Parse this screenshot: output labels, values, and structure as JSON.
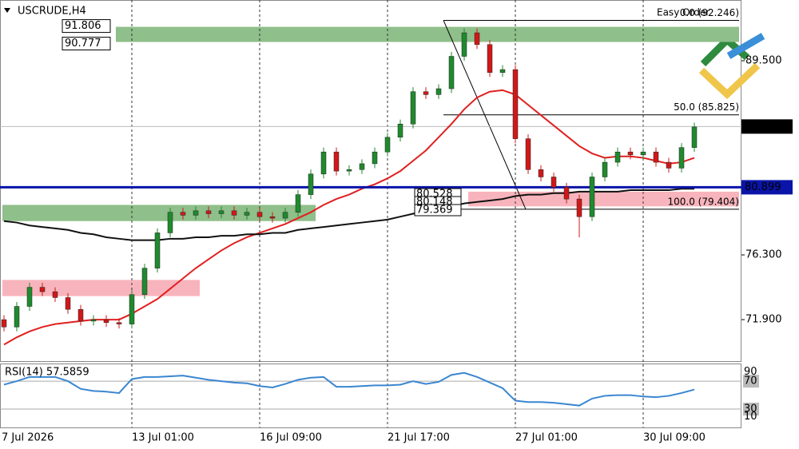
{
  "chart_data": {
    "type": "candlestick",
    "title": "USCRUDE,H4",
    "easy_order": "Easy Order",
    "categories": [
      "7 Jul 2026",
      null,
      null,
      null,
      null,
      null,
      null,
      null,
      null,
      null,
      "13 Jul 01:00",
      null,
      null,
      null,
      null,
      null,
      null,
      null,
      null,
      null,
      "16 Jul 09:00",
      null,
      null,
      null,
      null,
      null,
      null,
      null,
      null,
      null,
      "21 Jul 17:00",
      null,
      null,
      null,
      null,
      null,
      null,
      null,
      null,
      null,
      "27 Jul 01:00",
      null,
      null,
      null,
      null,
      null,
      null,
      null,
      null,
      null,
      "30 Jul 09:00",
      null,
      null,
      null,
      null
    ],
    "open": [
      71.9,
      71.4,
      72.8,
      74.1,
      73.8,
      73.4,
      72.6,
      71.8,
      71.9,
      71.7,
      71.6,
      73.6,
      75.4,
      77.8,
      79.2,
      79.0,
      79.3,
      79.1,
      79.3,
      79.0,
      79.2,
      78.9,
      78.8,
      79.2,
      80.4,
      81.8,
      83.3,
      82.0,
      82.1,
      82.5,
      83.3,
      84.3,
      85.2,
      87.4,
      87.2,
      87.6,
      89.8,
      91.4,
      90.6,
      88.7,
      88.9,
      84.2,
      82.1,
      81.6,
      80.9,
      80.1,
      78.9,
      81.6,
      82.6,
      83.3,
      83.1,
      83.3,
      82.6,
      82.2,
      83.6
    ],
    "high": [
      72.2,
      73.1,
      74.4,
      74.4,
      74.1,
      73.7,
      72.9,
      72.2,
      72.2,
      72.0,
      73.9,
      75.7,
      78.1,
      79.5,
      79.5,
      79.6,
      79.6,
      79.6,
      79.6,
      79.5,
      79.5,
      79.2,
      79.5,
      80.7,
      82.1,
      83.6,
      83.6,
      82.4,
      82.8,
      83.6,
      84.6,
      85.5,
      87.7,
      87.7,
      87.9,
      90.1,
      91.7,
      91.7,
      90.9,
      89.2,
      89.2,
      84.5,
      82.4,
      81.9,
      81.2,
      80.4,
      81.9,
      82.9,
      83.6,
      83.6,
      83.6,
      83.6,
      82.9,
      83.9,
      85.3
    ],
    "low": [
      71.1,
      71.1,
      72.5,
      73.5,
      73.1,
      72.3,
      71.5,
      71.5,
      71.4,
      71.3,
      71.3,
      73.3,
      75.1,
      77.5,
      78.7,
      78.7,
      78.8,
      78.8,
      78.7,
      78.7,
      78.6,
      78.5,
      78.5,
      78.9,
      80.1,
      81.5,
      81.7,
      81.7,
      81.8,
      82.2,
      83.0,
      84.0,
      84.9,
      86.9,
      86.9,
      87.3,
      89.5,
      90.3,
      88.4,
      88.4,
      83.9,
      81.8,
      81.3,
      80.6,
      79.8,
      77.5,
      78.6,
      81.3,
      82.3,
      82.8,
      82.8,
      82.3,
      81.9,
      81.9,
      83.3
    ],
    "close": [
      71.4,
      72.8,
      74.1,
      73.8,
      73.4,
      72.6,
      71.8,
      71.9,
      71.7,
      71.6,
      73.6,
      75.4,
      77.8,
      79.2,
      79.0,
      79.3,
      79.1,
      79.3,
      79.0,
      79.2,
      78.9,
      78.8,
      79.2,
      80.4,
      81.8,
      83.3,
      82.0,
      82.1,
      82.5,
      83.3,
      84.3,
      85.2,
      87.4,
      87.2,
      87.6,
      89.8,
      91.4,
      90.6,
      88.7,
      88.9,
      84.2,
      82.1,
      81.6,
      80.9,
      80.1,
      78.9,
      81.6,
      82.6,
      83.3,
      83.1,
      83.3,
      82.6,
      82.2,
      83.6,
      85.0
    ],
    "up_color": "#1f8a2e",
    "down_color": "#d01818",
    "moving_averages": [
      {
        "color": "#e02020",
        "values": [
          70.2,
          70.7,
          71.1,
          71.4,
          71.6,
          71.7,
          71.8,
          71.9,
          71.9,
          71.9,
          72.3,
          72.8,
          73.3,
          74.0,
          74.7,
          75.4,
          76.0,
          76.6,
          77.1,
          77.5,
          77.8,
          78.1,
          78.4,
          78.8,
          79.2,
          79.7,
          80.1,
          80.4,
          80.8,
          81.1,
          81.5,
          82.0,
          82.7,
          83.4,
          84.3,
          85.2,
          86.2,
          87.0,
          87.4,
          87.5,
          87.2,
          86.5,
          85.8,
          85.1,
          84.4,
          83.7,
          83.2,
          82.9,
          83.0,
          83.0,
          82.9,
          82.7,
          82.5,
          82.6,
          82.9
        ]
      },
      {
        "color": "#111111",
        "values": [
          78.6,
          78.5,
          78.3,
          78.2,
          78.1,
          78.0,
          77.8,
          77.7,
          77.5,
          77.4,
          77.3,
          77.3,
          77.3,
          77.4,
          77.4,
          77.5,
          77.5,
          77.6,
          77.6,
          77.7,
          77.7,
          77.8,
          77.8,
          78.0,
          78.1,
          78.2,
          78.3,
          78.4,
          78.5,
          78.6,
          78.7,
          78.9,
          79.1,
          79.3,
          79.5,
          79.6,
          79.8,
          79.9,
          80.0,
          80.1,
          80.3,
          80.4,
          80.4,
          80.5,
          80.5,
          80.6,
          80.6,
          80.6,
          80.6,
          80.7,
          80.7,
          80.7,
          80.7,
          80.8,
          80.8
        ]
      }
    ],
    "ylim": [
      69.08,
      93.63
    ],
    "yticks": [
      {
        "value": 71.9,
        "label": "71.900"
      },
      {
        "value": 76.3,
        "label": "76.300"
      },
      {
        "value": 89.5,
        "label": "89.500"
      }
    ],
    "zones": [
      {
        "high": 91.806,
        "low": 90.777,
        "color": "#8fbf8a",
        "from": 8
      },
      {
        "high": 79.7,
        "low": 78.6,
        "color": "#8fbf8a",
        "from": 0
      },
      {
        "high": 74.6,
        "low": 73.5,
        "color": "#f8b4bc",
        "from": 0
      },
      {
        "high": 80.6,
        "low": 79.6,
        "color": "#f8b4bc",
        "from": 36
      }
    ],
    "zone_labels": [
      91.806,
      90.777
    ],
    "stacked_labels": [
      "80.528",
      "80.148",
      "79.369"
    ],
    "fibonacci": [
      {
        "value": 92.246,
        "label": "0.0 (92.246)"
      },
      {
        "value": 85.825,
        "label": "50.0 (85.825)"
      },
      {
        "value": 79.404,
        "label": "100.0 (79.404)"
      }
    ],
    "hline": {
      "value": 80.899,
      "color": "#0a14a8"
    },
    "current_price": 85.028,
    "rsi": {
      "label": "RSI(14) 57.5859",
      "color": "#3a86d0",
      "ylim": [
        3.7,
        95.3
      ],
      "yticks": [
        90,
        70,
        30,
        10
      ],
      "values": [
        65,
        70,
        76,
        76,
        76,
        70,
        59,
        56,
        55,
        53,
        73,
        76,
        76,
        77,
        78,
        75,
        72,
        70,
        68,
        67,
        63,
        61,
        66,
        72,
        75,
        76,
        62,
        62,
        63,
        64,
        64,
        65,
        70,
        66,
        69,
        79,
        82,
        76,
        68,
        60,
        42,
        40,
        40,
        39,
        37,
        35,
        45,
        49,
        50,
        50,
        48,
        47,
        49,
        53,
        58
      ]
    }
  }
}
